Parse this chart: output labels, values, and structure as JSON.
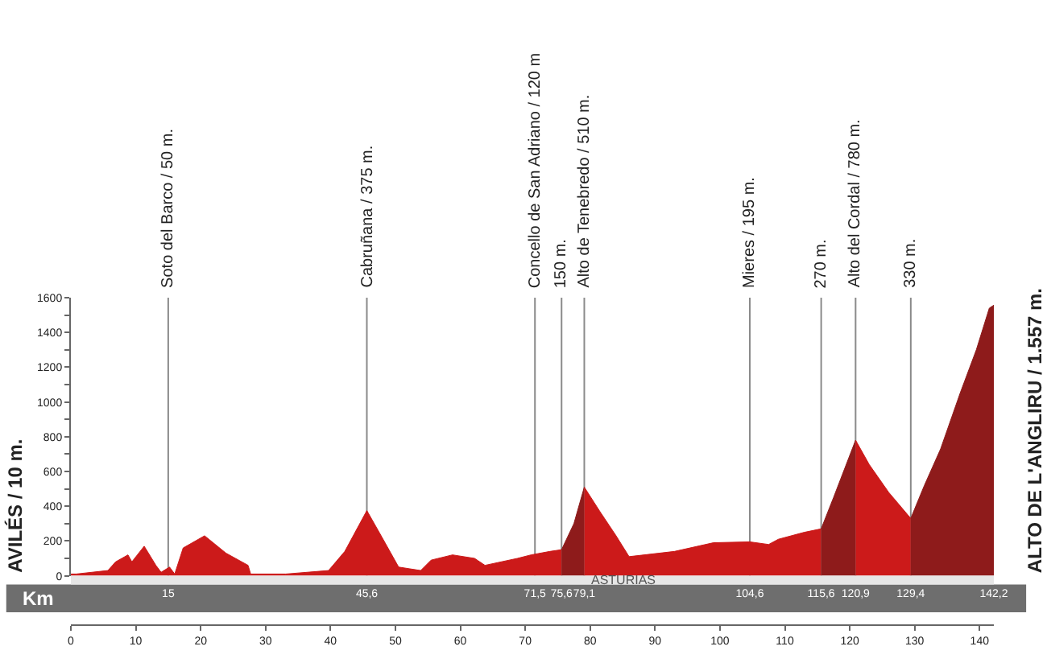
{
  "chart_data": {
    "type": "area",
    "ylabel": "AVILÉS / 10 m.",
    "x2label": "Km",
    "annotations": [
      "ASTURIAS",
      "ALTO DE L'ANGLIRU / 1.557 m."
    ],
    "series": [
      {
        "color": "#cc1a1a",
        "x": [
          0,
          0.8,
          5.7,
          6.9,
          8.8,
          9.4,
          11.3,
          13.1,
          13.9,
          15.2,
          16.0,
          17.3,
          20.6,
          23.9,
          27.3,
          27.7,
          33.1,
          39.7,
          42.2,
          45.6,
          47.8,
          50.5,
          53.9,
          55.5,
          58.8,
          62.2,
          63.8,
          68.8,
          70.9,
          73.8,
          75.6
        ],
        "values": [
          10,
          10,
          30,
          80,
          120,
          80,
          170,
          60,
          20,
          50,
          10,
          160,
          230,
          130,
          60,
          10,
          10,
          30,
          140,
          375,
          230,
          50,
          30,
          90,
          120,
          100,
          60,
          100,
          120,
          140,
          150
        ]
      },
      {
        "color": "#8e1b1b",
        "x": [
          75.6,
          77.5,
          79.1
        ],
        "values": [
          150,
          300,
          510
        ]
      },
      {
        "color": "#cc1a1a",
        "x": [
          79.1,
          81.5,
          84,
          86,
          93,
          99,
          104.6,
          107.5,
          109,
          113,
          115.6
        ],
        "values": [
          510,
          370,
          230,
          110,
          140,
          190,
          195,
          180,
          210,
          250,
          270
        ]
      },
      {
        "color": "#8e1b1b",
        "x": [
          115.6,
          117.5,
          120.9
        ],
        "values": [
          270,
          450,
          780
        ]
      },
      {
        "color": "#cc1a1a",
        "x": [
          120.9,
          123,
          126,
          129.4
        ],
        "values": [
          780,
          640,
          480,
          330
        ]
      },
      {
        "color": "#8e1b1b",
        "x": [
          129.4,
          131.5,
          134,
          137,
          139.5,
          141.5,
          142.2
        ],
        "values": [
          330,
          520,
          730,
          1050,
          1300,
          1540,
          1557
        ]
      }
    ],
    "xlim": [
      0,
      142.2
    ],
    "xticks": [
      0,
      10,
      20,
      30,
      40,
      50,
      60,
      70,
      80,
      90,
      100,
      110,
      120,
      130,
      140
    ],
    "x2lim": [
      0,
      142.2
    ],
    "x2ticks": [
      15,
      {
        "value": 45.6,
        "label": "45,6"
      },
      {
        "value": 71.5,
        "label": "71,5"
      },
      {
        "value": 75.6,
        "label": "75,6"
      },
      {
        "value": 79.1,
        "label": "79,1"
      },
      {
        "value": 104.6,
        "label": "104,6"
      },
      {
        "value": 115.6,
        "label": "115,6"
      },
      {
        "value": 120.9,
        "label": "120,9"
      },
      {
        "value": 129.4,
        "label": "129,4"
      },
      {
        "value": 142.2,
        "label": "142,2"
      }
    ],
    "ylim": [
      0,
      1600
    ],
    "yticks": [
      0,
      {
        "value": 100,
        "label": null
      },
      200,
      {
        "value": 300,
        "label": null
      },
      400,
      {
        "value": 500,
        "label": null
      },
      600,
      {
        "value": 700,
        "label": null
      },
      800,
      {
        "value": 900,
        "label": null
      },
      1000,
      {
        "value": 1100,
        "label": null
      },
      1200,
      {
        "value": 1300,
        "label": null
      },
      1400,
      {
        "value": 1500,
        "label": null
      },
      1600
    ],
    "ref_lines": [
      {
        "axis": "x",
        "value": 15,
        "label": "Soto del Barco / 50 m."
      },
      {
        "axis": "x",
        "value": 45.6,
        "label": "Cabruñana / 375 m."
      },
      {
        "axis": "x",
        "value": 71.5,
        "label": "Concello de San Adriano / 120 m"
      },
      {
        "axis": "x",
        "value": 75.6,
        "label": "150 m."
      },
      {
        "axis": "x",
        "value": 79.1,
        "label": "Alto de Tenebredo / 510 m."
      },
      {
        "axis": "x",
        "value": 104.6,
        "label": "Mieres / 195 m."
      },
      {
        "axis": "x",
        "value": 115.6,
        "label": "270 m."
      },
      {
        "axis": "x",
        "value": 120.9,
        "label": "Alto del Cordal / 780 m."
      },
      {
        "axis": "x",
        "value": 129.4,
        "label": "330 m."
      }
    ],
    "grid": false
  }
}
